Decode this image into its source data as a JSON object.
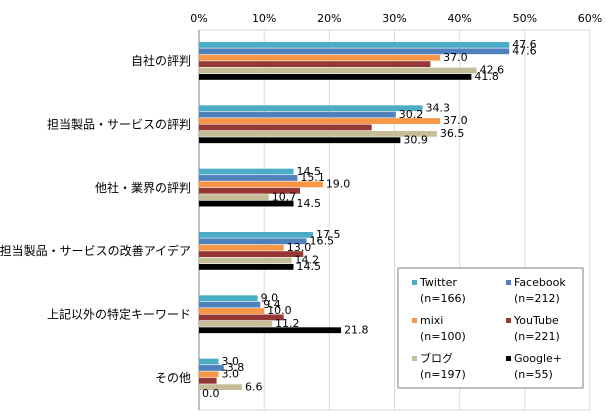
{
  "chart_data": {
    "type": "bar",
    "orientation": "horizontal",
    "xlim": [
      0,
      60
    ],
    "x_ticks": [
      "0%",
      "10%",
      "20%",
      "30%",
      "40%",
      "50%",
      "60%"
    ],
    "grid": true,
    "legend_position": "bottom-right",
    "categories": [
      "自社の評判",
      "担当製品・サービスの評判",
      "他社・業界の評判",
      "担当製品・サービスの改善アイデア",
      "上記以外の特定キーワード",
      "その他"
    ],
    "series": [
      {
        "name": "Twitter",
        "n": "(n=166)",
        "color": "#4bacc6",
        "values": [
          47.6,
          34.3,
          14.5,
          17.5,
          9.0,
          3.0
        ],
        "labels": [
          "47.6",
          "34.3",
          "14.5",
          "17.5",
          "9.0",
          "3.0"
        ]
      },
      {
        "name": "Facebook",
        "n": "(n=212)",
        "color": "#4f81bd",
        "values": [
          47.6,
          30.2,
          15.1,
          16.5,
          9.4,
          3.8
        ],
        "labels": [
          "47.6",
          "30.2",
          "15.1",
          "16.5",
          "9.4",
          "3.8"
        ]
      },
      {
        "name": "mixi",
        "n": "(n=100)",
        "color": "#f79646",
        "values": [
          37.0,
          37.0,
          19.0,
          13.0,
          10.0,
          3.0
        ],
        "labels": [
          "37.0",
          "37.0",
          "19.0",
          "13.0",
          "10.0",
          "3.0"
        ]
      },
      {
        "name": "YouTube",
        "n": "(n=221)",
        "color": "#953735",
        "values": [
          35.5,
          26.5,
          15.5,
          16.0,
          13.0,
          2.7
        ],
        "labels": [
          "",
          "",
          "",
          "",
          "",
          ""
        ]
      },
      {
        "name": "ブログ",
        "n": "(n=197)",
        "color": "#c4bd97",
        "values": [
          42.6,
          36.5,
          10.7,
          14.2,
          11.2,
          6.6
        ],
        "labels": [
          "42.6",
          "36.5",
          "10.7",
          "14.2",
          "11.2",
          "6.6"
        ]
      },
      {
        "name": "Google+",
        "n": "(n=55)",
        "color": "#000000",
        "values": [
          41.8,
          30.9,
          14.5,
          14.5,
          21.8,
          0.0
        ],
        "labels": [
          "41.8",
          "30.9",
          "14.5",
          "14.5",
          "21.8",
          "0.0"
        ]
      }
    ]
  }
}
